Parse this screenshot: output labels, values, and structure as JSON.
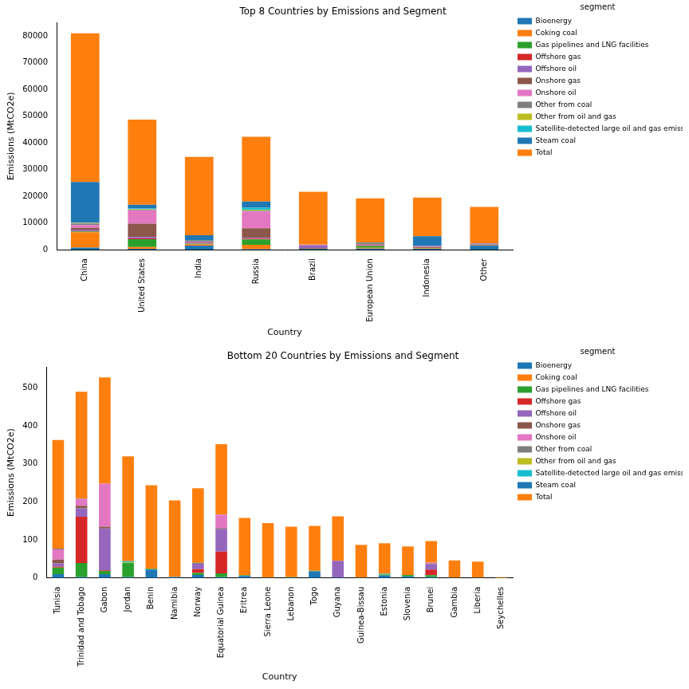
{
  "chart_data": [
    {
      "type": "bar",
      "title": "Top 8 Countries by Emissions and Segment",
      "x_label": "Country",
      "y_label": "Emissions (MtCO2e)",
      "stacked": true,
      "grid": false,
      "legend": "upper right",
      "legend_title": "segment",
      "categories": [
        "China",
        "United States",
        "India",
        "Russia",
        "Brazil",
        "European Union",
        "Indonesia",
        "Other"
      ],
      "ylim": [
        0,
        85000
      ],
      "yticks": [
        0,
        10000,
        20000,
        30000,
        40000,
        50000,
        60000,
        70000,
        80000
      ],
      "series": [
        {
          "name": "Bioenergy",
          "color": "#1f77b4",
          "values": [
            800,
            300,
            1500,
            200,
            300,
            400,
            300,
            1500
          ]
        },
        {
          "name": "Coking coal",
          "color": "#ff7f0e",
          "values": [
            5700,
            700,
            500,
            1600,
            0,
            300,
            200,
            100
          ]
        },
        {
          "name": "Gas pipelines and LNG facilities",
          "color": "#2ca02c",
          "values": [
            300,
            2900,
            200,
            2000,
            100,
            700,
            200,
            100
          ]
        },
        {
          "name": "Offshore gas",
          "color": "#d62728",
          "values": [
            200,
            300,
            100,
            300,
            200,
            200,
            200,
            100
          ]
        },
        {
          "name": "Offshore oil",
          "color": "#9467bd",
          "values": [
            500,
            500,
            200,
            300,
            1000,
            200,
            200,
            200
          ]
        },
        {
          "name": "Onshore gas",
          "color": "#8c564b",
          "values": [
            700,
            5000,
            200,
            3600,
            100,
            200,
            100,
            100
          ]
        },
        {
          "name": "Onshore oil",
          "color": "#e377c2",
          "values": [
            1000,
            5000,
            300,
            6300,
            200,
            100,
            200,
            100
          ]
        },
        {
          "name": "Other from coal",
          "color": "#7f7f7f",
          "values": [
            600,
            300,
            300,
            300,
            0,
            300,
            0,
            100
          ]
        },
        {
          "name": "Other from oil and gas",
          "color": "#bcbd22",
          "values": [
            200,
            200,
            100,
            300,
            0,
            100,
            0,
            0
          ]
        },
        {
          "name": "Satellite-detected large oil and gas emissions",
          "color": "#17becf",
          "values": [
            100,
            300,
            0,
            800,
            0,
            0,
            0,
            0
          ]
        },
        {
          "name": "Steam coal",
          "color": "#1f77b4",
          "values": [
            15200,
            1300,
            2000,
            2300,
            0,
            200,
            3600,
            100
          ]
        },
        {
          "name": "Total",
          "color": "#ff7f0e",
          "values": [
            55700,
            31900,
            29300,
            24300,
            19800,
            16500,
            14500,
            13600
          ]
        }
      ]
    },
    {
      "type": "bar",
      "title": "Bottom 20 Countries by Emissions and Segment",
      "x_label": "Country",
      "y_label": "Emissions (MtCO2e)",
      "stacked": true,
      "grid": false,
      "legend": "upper right",
      "legend_title": "segment",
      "categories": [
        "Tunisia",
        "Trinidad and Tobago",
        "Gabon",
        "Jordan",
        "Benin",
        "Namibia",
        "Norway",
        "Equatorial Guinea",
        "Eritrea",
        "Sierra Leone",
        "Lebanon",
        "Togo",
        "Guyana",
        "Guinea-Bissau",
        "Estonia",
        "Slovenia",
        "Brunei",
        "Gambia",
        "Liberia",
        "Seychelles"
      ],
      "ylim": [
        0,
        555
      ],
      "yticks": [
        0,
        100,
        200,
        300,
        400,
        500
      ],
      "series": [
        {
          "name": "Bioenergy",
          "color": "#1f77b4",
          "values": [
            10,
            2,
            10,
            2,
            22,
            2,
            8,
            2,
            5,
            1,
            1,
            17,
            1,
            1,
            6,
            4,
            2,
            1,
            1,
            0
          ]
        },
        {
          "name": "Coking coal",
          "color": "#ff7f0e",
          "values": [
            0,
            0,
            0,
            0,
            0,
            0,
            0,
            0,
            0,
            0,
            0,
            0,
            0,
            0,
            0,
            0,
            0,
            0,
            0,
            0
          ]
        },
        {
          "name": "Gas pipelines and LNG facilities",
          "color": "#2ca02c",
          "values": [
            17,
            37,
            8,
            37,
            2,
            0,
            5,
            10,
            2,
            0,
            1,
            2,
            0,
            0,
            3,
            4,
            5,
            0,
            0,
            0
          ]
        },
        {
          "name": "Offshore gas",
          "color": "#d62728",
          "values": [
            3,
            122,
            2,
            0,
            0,
            0,
            10,
            57,
            0,
            0,
            0,
            0,
            0,
            0,
            0,
            0,
            15,
            0,
            0,
            0
          ]
        },
        {
          "name": "Offshore oil",
          "color": "#9467bd",
          "values": [
            8,
            22,
            110,
            0,
            0,
            0,
            14,
            60,
            0,
            0,
            0,
            0,
            44,
            0,
            0,
            0,
            14,
            0,
            0,
            0
          ]
        },
        {
          "name": "Onshore gas",
          "color": "#8c564b",
          "values": [
            10,
            7,
            5,
            0,
            0,
            0,
            0,
            2,
            0,
            0,
            0,
            0,
            0,
            0,
            0,
            0,
            2,
            0,
            0,
            0
          ]
        },
        {
          "name": "Onshore oil",
          "color": "#e377c2",
          "values": [
            27,
            18,
            113,
            0,
            0,
            0,
            0,
            36,
            0,
            0,
            0,
            0,
            0,
            0,
            0,
            0,
            3,
            0,
            0,
            0
          ]
        },
        {
          "name": "Other from coal",
          "color": "#7f7f7f",
          "values": [
            2,
            1,
            0,
            0,
            0,
            1,
            3,
            0,
            0,
            0,
            0,
            0,
            0,
            0,
            0,
            0,
            0,
            0,
            0,
            0
          ]
        },
        {
          "name": "Other from oil and gas",
          "color": "#bcbd22",
          "values": [
            0,
            0,
            0,
            2,
            0,
            0,
            0,
            0,
            0,
            0,
            0,
            0,
            0,
            0,
            0,
            0,
            0,
            0,
            0,
            0
          ]
        },
        {
          "name": "Satellite-detected large oil and gas emissions",
          "color": "#17becf",
          "values": [
            0,
            0,
            0,
            3,
            0,
            0,
            0,
            0,
            0,
            0,
            0,
            0,
            0,
            0,
            2,
            0,
            0,
            0,
            0,
            0
          ]
        },
        {
          "name": "Steam coal",
          "color": "#1f77b4",
          "values": [
            0,
            0,
            0,
            0,
            0,
            0,
            0,
            0,
            0,
            0,
            0,
            0,
            0,
            0,
            0,
            0,
            0,
            0,
            0,
            0
          ]
        },
        {
          "name": "Total",
          "color": "#ff7f0e",
          "values": [
            286,
            281,
            280,
            276,
            220,
            201,
            196,
            185,
            151,
            143,
            133,
            118,
            117,
            86,
            80,
            75,
            56,
            45,
            42,
            2
          ]
        }
      ]
    }
  ]
}
